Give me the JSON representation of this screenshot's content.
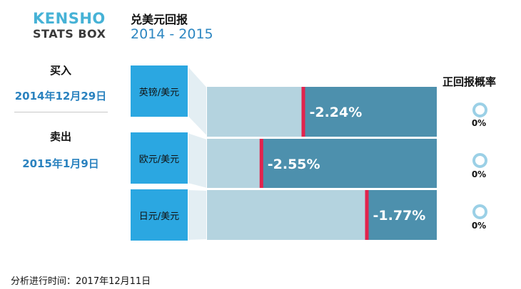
{
  "logo": {
    "line1": "KENSHO",
    "line2": "STATS BOX"
  },
  "title": "兑美元回报",
  "subtitle": "2014 - 2015",
  "buy": {
    "label": "买入",
    "date": "2014年12月29日"
  },
  "sell": {
    "label": "卖出",
    "date": "2015年1月9日"
  },
  "prob_header": "正回报概率",
  "footer": "分析进行时间：2017年12月11日",
  "colors": {
    "box": "#2ba7e1",
    "range_light": "#b4d3df",
    "range_dark": "#4d90ad",
    "marker": "#e2234d",
    "ring": "#9bd0e6"
  },
  "chart_data": {
    "type": "bar",
    "categories": [
      "英镑/美元",
      "欧元/美元",
      "日元/美元"
    ],
    "values": [
      -2.24,
      -2.55,
      -1.77
    ],
    "value_labels": [
      "-2.24%",
      "-2.55%",
      "-1.77%"
    ],
    "positive_probability_labels": [
      "0%",
      "0%",
      "0%"
    ],
    "positive_probability": [
      0,
      0,
      0
    ],
    "xlim": [
      -2.95,
      -1.25
    ]
  }
}
